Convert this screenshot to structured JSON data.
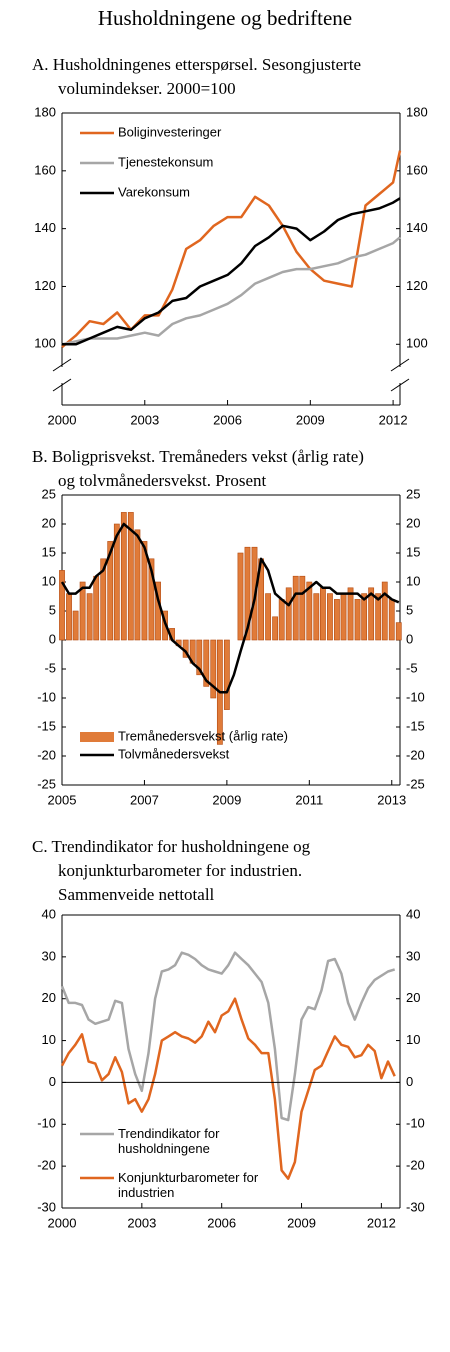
{
  "title": "Husholdningene og bedriftene",
  "chart_data": [
    {
      "type": "line",
      "title": [
        "A. Husholdningenes etterspørsel. Sesongjusterte",
        "volumindekser. 2000=100"
      ],
      "x": [
        2000,
        2000.5,
        2001,
        2001.5,
        2002,
        2002.5,
        2003,
        2003.5,
        2004,
        2004.5,
        2005,
        2005.5,
        2006,
        2006.5,
        2007,
        2007.5,
        2008,
        2008.5,
        2009,
        2009.5,
        2010,
        2010.5,
        2011,
        2011.5,
        2012,
        2012.25
      ],
      "series": [
        {
          "name": "Boliginvesteringer",
          "color": "#e0661f",
          "values": [
            99,
            103,
            108,
            107,
            111,
            105,
            110,
            110,
            119,
            133,
            136,
            141,
            144,
            144,
            151,
            148,
            141,
            132,
            126,
            122,
            121,
            120,
            148,
            152,
            156,
            167
          ]
        },
        {
          "name": "Tjenestekonsum",
          "color": "#a6a6a6",
          "values": [
            100,
            101,
            102,
            102,
            102,
            103,
            104,
            103,
            107,
            109,
            110,
            112,
            114,
            117,
            121,
            123,
            125,
            126,
            126,
            127,
            128,
            130,
            131,
            133,
            135,
            137
          ]
        },
        {
          "name": "Varekonsum",
          "color": "#000000",
          "values": [
            100,
            100,
            102,
            104,
            106,
            105,
            109,
            111,
            115,
            116,
            120,
            122,
            124,
            128,
            134,
            137,
            141,
            140,
            136,
            139,
            143,
            145,
            146,
            147,
            149,
            150.5
          ]
        }
      ],
      "xlim": [
        2000,
        2012.25
      ],
      "xticks": [
        2000,
        2003,
        2006,
        2009,
        2012
      ],
      "ylim": [
        79,
        180
      ],
      "yticks": [
        100,
        120,
        140,
        160,
        180
      ],
      "right_axis": true,
      "axis_break": true,
      "legend": "upper left"
    },
    {
      "type": "combo",
      "title": [
        "B. Boligprisvekst. Tremåneders vekst (årlig rate)",
        "og tolvmånedersvekst. Prosent"
      ],
      "x": [
        2005,
        2005.17,
        2005.33,
        2005.5,
        2005.67,
        2005.83,
        2006,
        2006.17,
        2006.33,
        2006.5,
        2006.67,
        2006.83,
        2007,
        2007.17,
        2007.33,
        2007.5,
        2007.67,
        2007.83,
        2008,
        2008.17,
        2008.33,
        2008.5,
        2008.67,
        2008.83,
        2009,
        2009.17,
        2009.33,
        2009.5,
        2009.67,
        2009.83,
        2010,
        2010.17,
        2010.33,
        2010.5,
        2010.67,
        2010.83,
        2011,
        2011.17,
        2011.33,
        2011.5,
        2011.67,
        2011.83,
        2012,
        2012.17,
        2012.33,
        2012.5,
        2012.67,
        2012.83,
        2013,
        2013.17
      ],
      "series": [
        {
          "name": "Tremånedersvekst (årlig rate)",
          "kind": "bar",
          "color": "#e07b39",
          "values": [
            12,
            8,
            5,
            10,
            8,
            11,
            14,
            17,
            20,
            22,
            22,
            19,
            17,
            14,
            10,
            5,
            2,
            -1,
            -3,
            -4,
            -6,
            -8,
            -10,
            -18,
            -12,
            0,
            15,
            16,
            16,
            14,
            8,
            4,
            7,
            9,
            11,
            11,
            10,
            8,
            9,
            8,
            7,
            8,
            9,
            7,
            8,
            9,
            8,
            10,
            7,
            3
          ]
        },
        {
          "name": "Tolvmånedersvekst",
          "kind": "line",
          "color": "#000000",
          "values": [
            10,
            8,
            8,
            9,
            9,
            11,
            12,
            15,
            18,
            20,
            19,
            18,
            16,
            12,
            7,
            3,
            0,
            -1,
            -2,
            -4,
            -5,
            -7,
            -8,
            -9,
            -9,
            -6,
            -2,
            2,
            7,
            14,
            12,
            8,
            7,
            6,
            8,
            8,
            9,
            10,
            9,
            9,
            8,
            8,
            8,
            8,
            7,
            8,
            7,
            8,
            7,
            6.5
          ]
        }
      ],
      "xlim": [
        2005,
        2013.2
      ],
      "xticks": [
        2005,
        2007,
        2009,
        2011,
        2013
      ],
      "ylim": [
        -25,
        25
      ],
      "yticks": [
        -25,
        -20,
        -15,
        -10,
        -5,
        0,
        5,
        10,
        15,
        20,
        25
      ],
      "right_axis": true,
      "legend": "lower left"
    },
    {
      "type": "line",
      "title": [
        "C. Trendindikator for husholdningene og",
        "konjunkturbarometer for industrien.",
        "Sammenveide nettotall"
      ],
      "x": [
        2000,
        2000.25,
        2000.5,
        2000.75,
        2001,
        2001.25,
        2001.5,
        2001.75,
        2002,
        2002.25,
        2002.5,
        2002.75,
        2003,
        2003.25,
        2003.5,
        2003.75,
        2004,
        2004.25,
        2004.5,
        2004.75,
        2005,
        2005.25,
        2005.5,
        2005.75,
        2006,
        2006.25,
        2006.5,
        2006.75,
        2007,
        2007.25,
        2007.5,
        2007.75,
        2008,
        2008.25,
        2008.5,
        2008.75,
        2009,
        2009.25,
        2009.5,
        2009.75,
        2010,
        2010.25,
        2010.5,
        2010.75,
        2011,
        2011.25,
        2011.5,
        2011.75,
        2012,
        2012.25,
        2012.5
      ],
      "series": [
        {
          "name": "Trendindikator for husholdningene",
          "color": "#a6a6a6",
          "values": [
            23,
            19,
            19,
            18.5,
            15,
            14,
            14.5,
            15,
            19.5,
            19,
            8,
            2,
            -2,
            7,
            20,
            26.5,
            27,
            28,
            31,
            30.5,
            29.5,
            28,
            27,
            26.5,
            26,
            28,
            31,
            29.5,
            28,
            26,
            24,
            19,
            8,
            -8.5,
            -9,
            2,
            15,
            18,
            17.5,
            22,
            29,
            29.5,
            26,
            19,
            15,
            19,
            22.5,
            24.5,
            25.5,
            26.5,
            27
          ]
        },
        {
          "name": "Konjunkturbarometer for industrien",
          "color": "#e0661f",
          "values": [
            4,
            7,
            9,
            11.5,
            5,
            4.5,
            0.5,
            2,
            6,
            2.5,
            -5,
            -4,
            -7,
            -4,
            2,
            10,
            11,
            12,
            11,
            10.5,
            9.5,
            11,
            14.5,
            12,
            16,
            17,
            20,
            15,
            10.5,
            9,
            7,
            7,
            -4,
            -21,
            -23,
            -19,
            -7,
            -2,
            3,
            4,
            7.5,
            11,
            9,
            8.5,
            6,
            6.5,
            9,
            7.5,
            1,
            5,
            1.5
          ]
        }
      ],
      "xlim": [
        2000,
        2012.7
      ],
      "xticks": [
        2000,
        2003,
        2006,
        2009,
        2012
      ],
      "ylim": [
        -30,
        40
      ],
      "yticks": [
        -30,
        -20,
        -10,
        0,
        10,
        20,
        30,
        40
      ],
      "right_axis": true,
      "zero_line": true,
      "legend": "lower left"
    }
  ]
}
